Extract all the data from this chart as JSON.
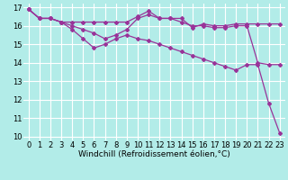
{
  "xlabel": "Windchill (Refroidissement éolien,°C)",
  "background_color": "#b2ece8",
  "grid_color": "#ffffff",
  "line_color": "#993399",
  "xlim": [
    -0.5,
    23.5
  ],
  "ylim": [
    9.8,
    17.2
  ],
  "xticks": [
    0,
    1,
    2,
    3,
    4,
    5,
    6,
    7,
    8,
    9,
    10,
    11,
    12,
    13,
    14,
    15,
    16,
    17,
    18,
    19,
    20,
    21,
    22,
    23
  ],
  "yticks": [
    10,
    11,
    12,
    13,
    14,
    15,
    16,
    17
  ],
  "line1_x": [
    0,
    1,
    2,
    3,
    4,
    5,
    6,
    7,
    8,
    9,
    10,
    11,
    12,
    13,
    14,
    15,
    16,
    17,
    18,
    19,
    20,
    21,
    22,
    23
  ],
  "line1_y": [
    16.9,
    16.4,
    16.4,
    16.2,
    16.2,
    16.2,
    16.2,
    16.2,
    16.2,
    16.2,
    16.5,
    16.8,
    16.4,
    16.4,
    16.4,
    15.9,
    16.1,
    16.0,
    16.0,
    16.1,
    16.1,
    16.1,
    16.1,
    16.1
  ],
  "line2_x": [
    0,
    1,
    2,
    3,
    4,
    5,
    6,
    7,
    8,
    9,
    10,
    11,
    12,
    13,
    14,
    15,
    16,
    17,
    18,
    19,
    20,
    21,
    22,
    23
  ],
  "line2_y": [
    16.9,
    16.4,
    16.4,
    16.2,
    16.0,
    15.8,
    15.6,
    15.3,
    15.5,
    15.8,
    16.4,
    16.6,
    16.4,
    16.4,
    16.2,
    16.0,
    16.0,
    15.9,
    15.9,
    16.0,
    16.0,
    14.0,
    13.9,
    13.9
  ],
  "line3_x": [
    0,
    1,
    2,
    3,
    4,
    5,
    6,
    7,
    8,
    9,
    10,
    11,
    12,
    13,
    14,
    15,
    16,
    17,
    18,
    19,
    20,
    21,
    22,
    23
  ],
  "line3_y": [
    16.9,
    16.4,
    16.4,
    16.2,
    15.8,
    15.3,
    14.8,
    15.0,
    15.3,
    15.5,
    15.3,
    15.2,
    15.0,
    14.8,
    14.6,
    14.4,
    14.2,
    14.0,
    13.8,
    13.6,
    13.9,
    13.9,
    11.8,
    10.2
  ],
  "xlabel_fontsize": 6.5,
  "tick_fontsize": 6,
  "linewidth": 0.9,
  "markersize": 2.0
}
